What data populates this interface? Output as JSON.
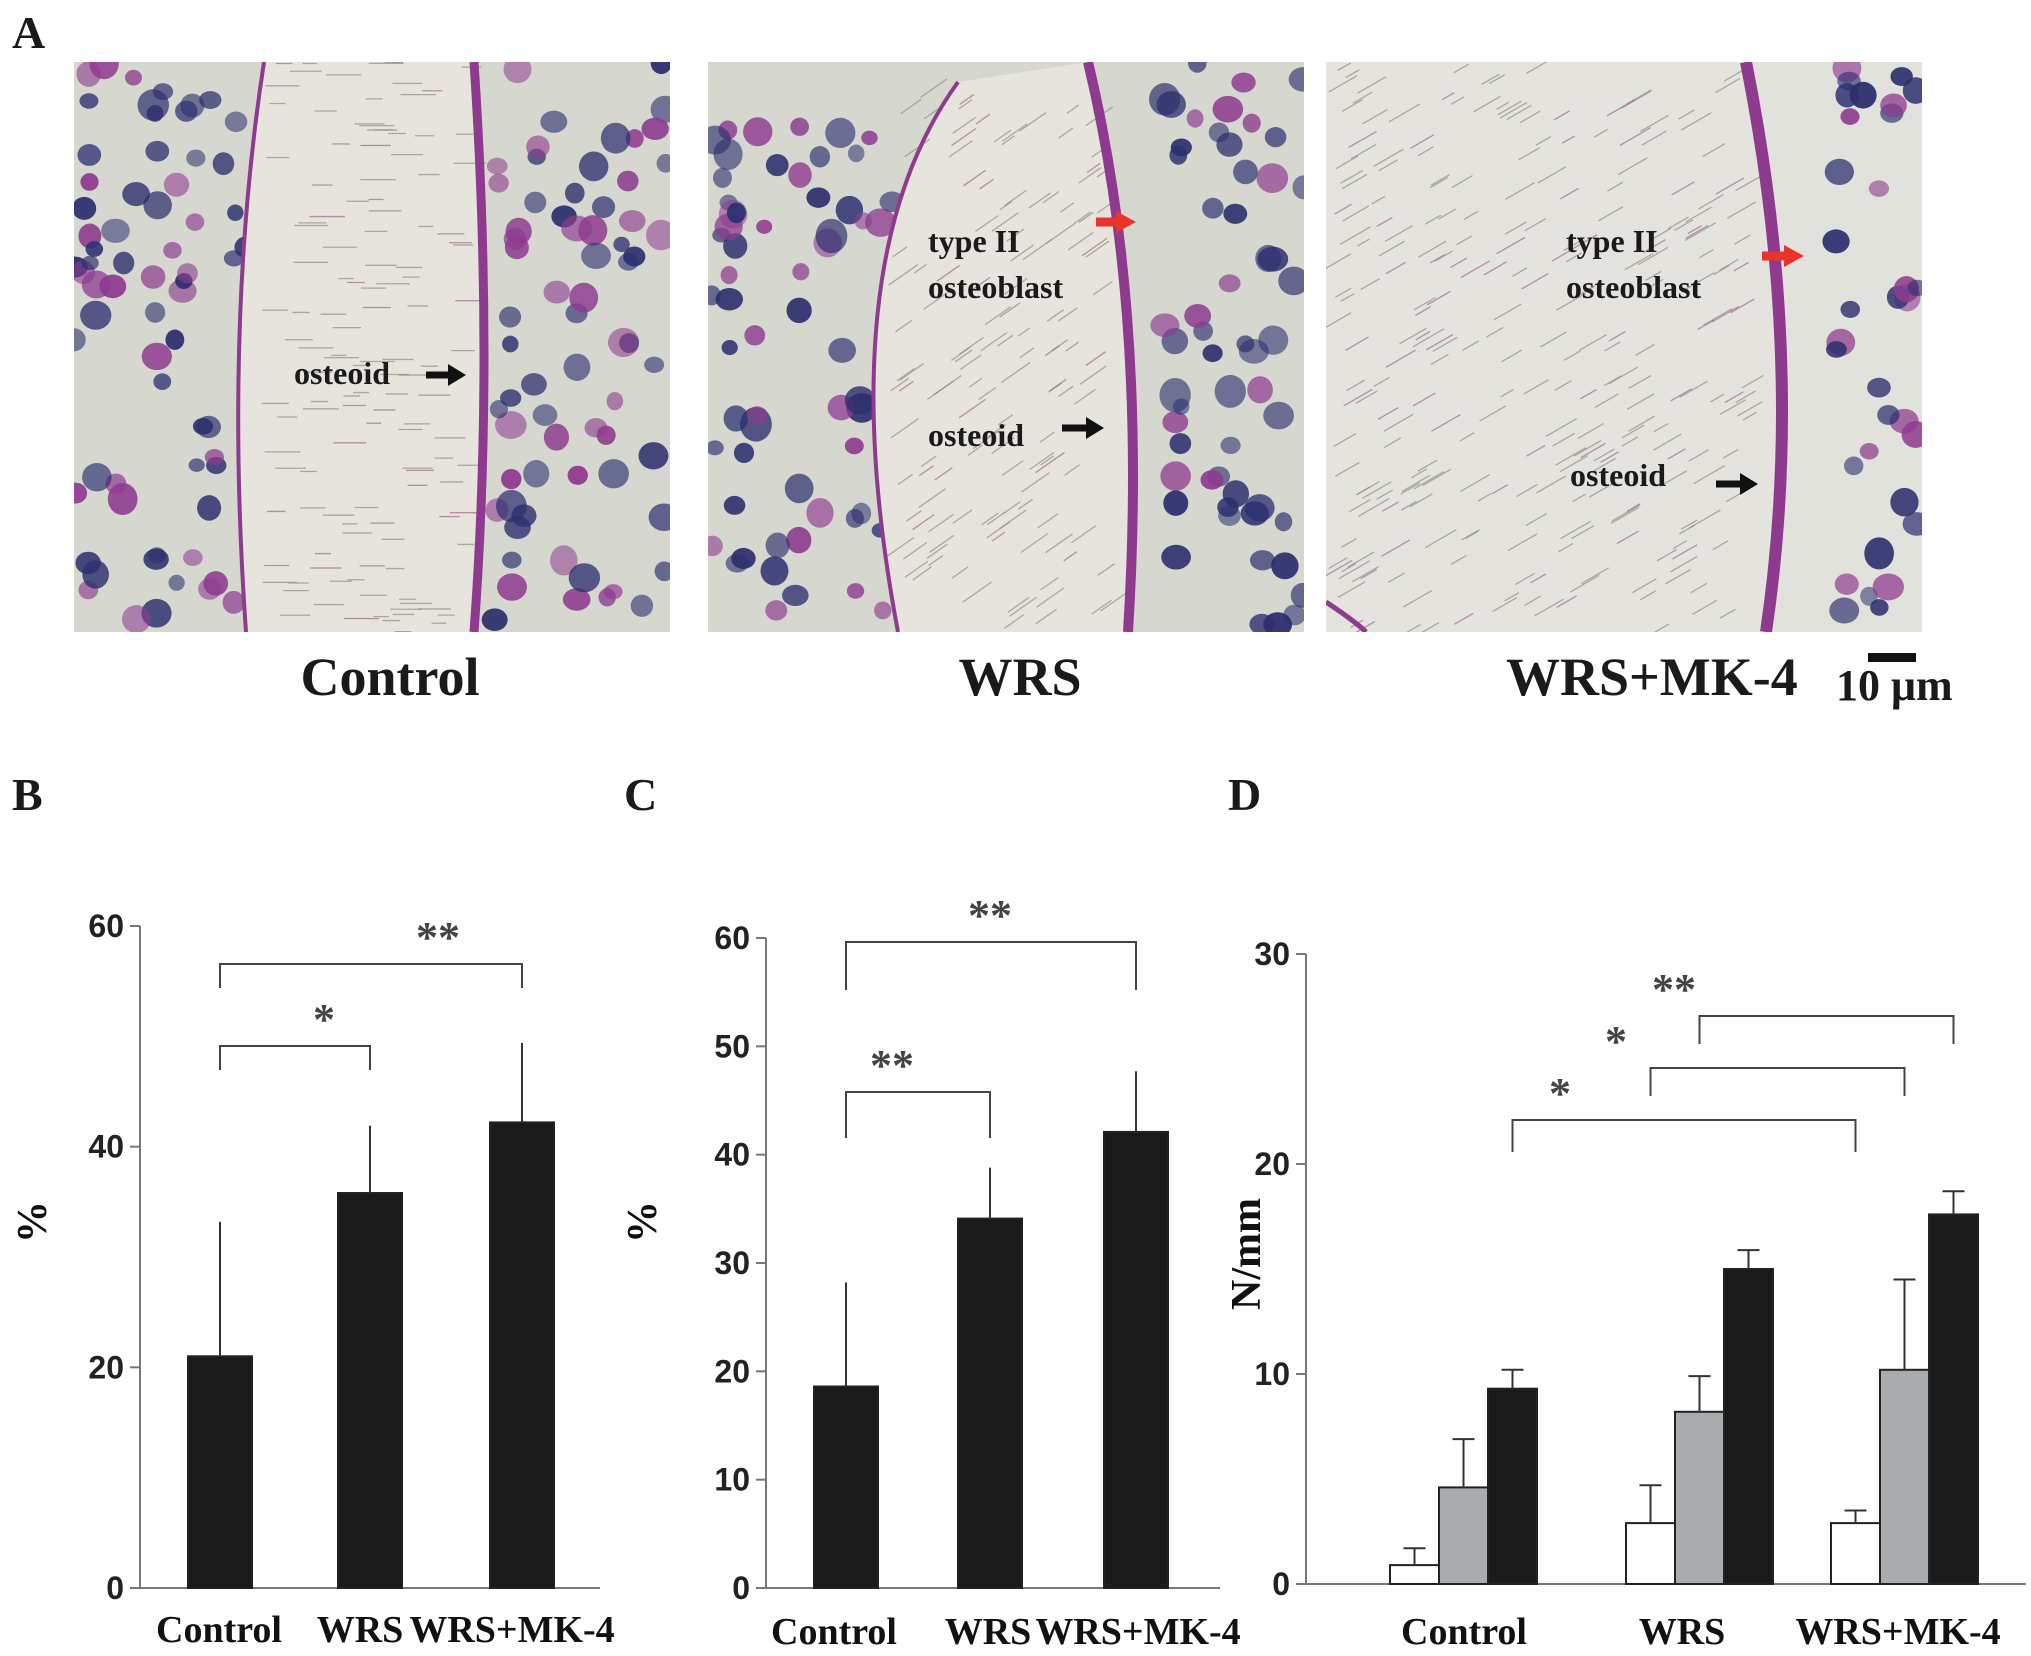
{
  "panels": {
    "a": "A",
    "b": "B",
    "c": "C",
    "d": "D"
  },
  "micrographs": [
    {
      "group": "Control",
      "annotations": [
        {
          "text": "osteoid",
          "arrow": "black"
        }
      ]
    },
    {
      "group": "WRS",
      "annotations": [
        {
          "text": "type II",
          "arrow": "red"
        },
        {
          "text": "osteoblast",
          "arrow": "none"
        },
        {
          "text": "osteoid",
          "arrow": "black"
        }
      ]
    },
    {
      "group": "WRS+MK-4",
      "annotations": [
        {
          "text": "type II",
          "arrow": "red"
        },
        {
          "text": "osteoblast",
          "arrow": "none"
        },
        {
          "text": "osteoid",
          "arrow": "black"
        }
      ]
    }
  ],
  "scale_bar_label": "10 μm",
  "colors": {
    "bar_black": "#1a1a1a",
    "bar_gray": "#a9acae",
    "bar_white": "#ffffff",
    "axis": "#777777",
    "red_arrow": "#e8342c",
    "stain_purple": "#8e3b8f",
    "nucleus_blue": "#2c2f6e",
    "bone_bg": "#dcdcd4"
  },
  "chart_data": [
    {
      "id": "B",
      "type": "bar",
      "categories": [
        "Control",
        "WRS",
        "WRS+MK-4"
      ],
      "series": [
        {
          "values": [
            21,
            35.8,
            42.2
          ],
          "errors": [
            12.2,
            6.1,
            7.2
          ]
        }
      ],
      "ylabel": "%",
      "ylim": [
        0,
        60
      ],
      "yticks": [
        0,
        20,
        40,
        60
      ],
      "grid": false,
      "significance": [
        {
          "from": 0,
          "to": 1,
          "label": "*"
        },
        {
          "from": 0,
          "to": 2,
          "label": "**"
        }
      ]
    },
    {
      "id": "C",
      "type": "bar",
      "categories": [
        "Control",
        "WRS",
        "WRS+MK-4"
      ],
      "series": [
        {
          "values": [
            18.6,
            34.1,
            42.1
          ],
          "errors": [
            9.6,
            4.7,
            5.6
          ]
        }
      ],
      "ylabel": "%",
      "ylim": [
        0,
        60
      ],
      "yticks": [
        0,
        10,
        20,
        30,
        40,
        50,
        60
      ],
      "grid": false,
      "significance": [
        {
          "from": 0,
          "to": 1,
          "label": "**"
        },
        {
          "from": 0,
          "to": 2,
          "label": "**"
        }
      ]
    },
    {
      "id": "D",
      "type": "bar",
      "categories": [
        "Control",
        "WRS",
        "WRS+MK-4"
      ],
      "series": [
        {
          "color": "white",
          "values": [
            0.9,
            2.9,
            2.9
          ],
          "errors": [
            0.8,
            1.8,
            0.6
          ]
        },
        {
          "color": "gray",
          "values": [
            4.6,
            8.2,
            10.2
          ],
          "errors": [
            2.3,
            1.7,
            4.3
          ]
        },
        {
          "color": "black",
          "values": [
            9.3,
            15,
            17.6
          ],
          "errors": [
            0.9,
            0.9,
            1.1
          ]
        }
      ],
      "ylabel": "N/mm",
      "ylim": [
        0,
        30
      ],
      "yticks": [
        0,
        10,
        20,
        30
      ],
      "grid": false,
      "significance": [
        {
          "from": [
            0,
            2
          ],
          "to": [
            2,
            0
          ],
          "label": "*"
        },
        {
          "from": [
            1,
            0
          ],
          "to": [
            2,
            1
          ],
          "label": "*"
        },
        {
          "from": [
            1,
            1
          ],
          "to": [
            2,
            2
          ],
          "label": "**"
        }
      ]
    }
  ]
}
